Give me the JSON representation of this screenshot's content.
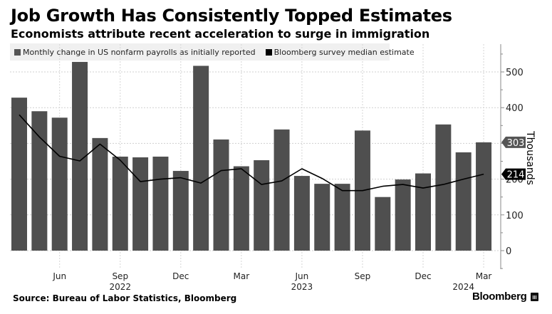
{
  "header": {
    "title": "Job Growth Has Consistently Topped Estimates",
    "subtitle": "Economists attribute recent acceleration to surge in immigration"
  },
  "footer": {
    "source": "Source: Bureau of Labor Statistics, Bloomberg",
    "brand": "Bloomberg"
  },
  "colors": {
    "bar": "#4f4f4f",
    "line": "#000000",
    "legend_bg": "#f0f0f0"
  },
  "chart_data": {
    "type": "bar",
    "title": "Job Growth Has Consistently Topped Estimates",
    "subtitle": "Economists attribute recent acceleration to surge in immigration",
    "ylabel": "Thousands",
    "xlabel": "",
    "ylim": [
      -50,
      580
    ],
    "yticks": [
      0,
      100,
      200,
      300,
      400,
      500
    ],
    "grid": true,
    "legend_position": "top-left",
    "categories": [
      "Apr 2022",
      "May 2022",
      "Jun 2022",
      "Jul 2022",
      "Aug 2022",
      "Sep 2022",
      "Oct 2022",
      "Nov 2022",
      "Dec 2022",
      "Jan 2023",
      "Feb 2023",
      "Mar 2023",
      "Apr 2023",
      "May 2023",
      "Jun 2023",
      "Jul 2023",
      "Aug 2023",
      "Sep 2023",
      "Oct 2023",
      "Nov 2023",
      "Dec 2023",
      "Jan 2024",
      "Feb 2024",
      "Mar 2024"
    ],
    "x_tick_labels": [
      {
        "index": 2,
        "label": "Jun"
      },
      {
        "index": 5,
        "label": "Sep"
      },
      {
        "index": 8,
        "label": "Dec"
      },
      {
        "index": 11,
        "label": "Mar"
      },
      {
        "index": 14,
        "label": "Jun"
      },
      {
        "index": 17,
        "label": "Sep"
      },
      {
        "index": 20,
        "label": "Dec"
      },
      {
        "index": 23,
        "label": "Mar"
      }
    ],
    "year_labels": [
      {
        "index": 5,
        "label": "2022"
      },
      {
        "index": 14,
        "label": "2023"
      },
      {
        "index": 22,
        "label": "2024"
      }
    ],
    "series": [
      {
        "name": "Monthly change in US nonfarm payrolls as initially reported",
        "type": "bar",
        "values": [
          428,
          390,
          372,
          528,
          315,
          263,
          261,
          263,
          223,
          517,
          311,
          236,
          253,
          339,
          209,
          187,
          187,
          336,
          150,
          199,
          216,
          353,
          275,
          303
        ],
        "end_label": "303"
      },
      {
        "name": "Bloomberg survey median estimate",
        "type": "line",
        "values": [
          380,
          318,
          264,
          251,
          298,
          253,
          193,
          200,
          204,
          189,
          224,
          229,
          185,
          195,
          229,
          202,
          168,
          168,
          180,
          185,
          175,
          185,
          200,
          214
        ],
        "end_label": "214"
      }
    ]
  }
}
